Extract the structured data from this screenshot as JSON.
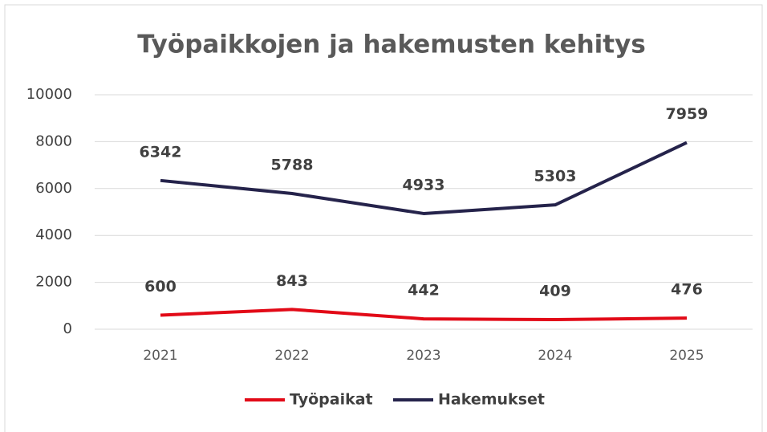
{
  "chart_data": {
    "type": "line",
    "title": "Työpaikkojen ja hakemusten kehitys",
    "categories": [
      "2021",
      "2022",
      "2023",
      "2024",
      "2025"
    ],
    "series": [
      {
        "name": "Työpaikat",
        "color": "#e20a17",
        "values": [
          600,
          843,
          442,
          409,
          476
        ]
      },
      {
        "name": "Hakemukset",
        "color": "#25234b",
        "values": [
          6342,
          5788,
          4933,
          5303,
          7959
        ]
      }
    ],
    "ylim": [
      0,
      10000
    ],
    "yticks": [
      0,
      2000,
      4000,
      6000,
      8000,
      10000
    ],
    "grid": true,
    "legend": "bottom"
  }
}
